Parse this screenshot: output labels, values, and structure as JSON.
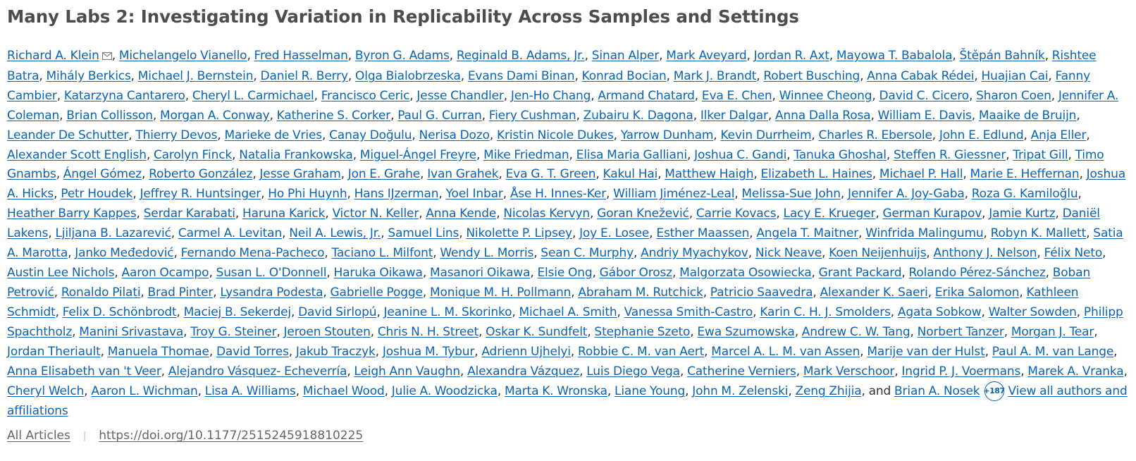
{
  "article": {
    "title": "Many Labs 2: Investigating Variation in Replicability Across Samples and Settings",
    "authors": [
      "Richard A. Klein",
      "Michelangelo Vianello",
      "Fred Hasselman",
      "Byron G. Adams",
      "Reginald B. Adams, Jr.",
      "Sinan Alper",
      "Mark Aveyard",
      "Jordan R. Axt",
      "Mayowa T. Babalola",
      "Štěpán Bahník",
      "Rishtee Batra",
      "Mihály Berkics",
      "Michael J. Bernstein",
      "Daniel R. Berry",
      "Olga Bialobrzeska",
      "Evans Dami Binan",
      "Konrad Bocian",
      "Mark J. Brandt",
      "Robert Busching",
      "Anna Cabak Rédei",
      "Huajian Cai",
      "Fanny Cambier",
      "Katarzyna Cantarero",
      "Cheryl L. Carmichael",
      "Francisco Ceric",
      "Jesse Chandler",
      "Jen-Ho Chang",
      "Armand Chatard",
      "Eva E. Chen",
      "Winnee Cheong",
      "David C. Cicero",
      "Sharon Coen",
      "Jennifer A. Coleman",
      "Brian Collisson",
      "Morgan A. Conway",
      "Katherine S. Corker",
      "Paul G. Curran",
      "Fiery Cushman",
      "Zubairu K. Dagona",
      "Ilker Dalgar",
      "Anna Dalla Rosa",
      "William E. Davis",
      "Maaike de Bruijn",
      "Leander De Schutter",
      "Thierry Devos",
      "Marieke de Vries",
      "Canay Doğulu",
      "Nerisa Dozo",
      "Kristin Nicole Dukes",
      "Yarrow Dunham",
      "Kevin Durrheim",
      "Charles R. Ebersole",
      "John E. Edlund",
      "Anja Eller",
      "Alexander Scott English",
      "Carolyn Finck",
      "Natalia Frankowska",
      "Miguel-Ángel Freyre",
      "Mike Friedman",
      "Elisa Maria Galliani",
      "Joshua C. Gandi",
      "Tanuka Ghoshal",
      "Steffen R. Giessner",
      "Tripat Gill",
      "Timo Gnambs",
      "Ángel Gómez",
      "Roberto González",
      "Jesse Graham",
      "Jon E. Grahe",
      "Ivan Grahek",
      "Eva G. T. Green",
      "Kakul Hai",
      "Matthew Haigh",
      "Elizabeth L. Haines",
      "Michael P. Hall",
      "Marie E. Heffernan",
      "Joshua A. Hicks",
      "Petr Houdek",
      "Jeffrey R. Huntsinger",
      "Ho Phi Huynh",
      "Hans IJzerman",
      "Yoel Inbar",
      "Åse H. Innes-Ker",
      "William Jiménez-Leal",
      "Melissa-Sue John",
      "Jennifer A. Joy-Gaba",
      "Roza G. Kamiloğlu",
      "Heather Barry Kappes",
      "Serdar Karabati",
      "Haruna Karick",
      "Victor N. Keller",
      "Anna Kende",
      "Nicolas Kervyn",
      "Goran Knežević",
      "Carrie Kovacs",
      "Lacy E. Krueger",
      "German Kurapov",
      "Jamie Kurtz",
      "Daniël Lakens",
      "Ljiljana B. Lazarević",
      "Carmel A. Levitan",
      "Neil A. Lewis, Jr.",
      "Samuel Lins",
      "Nikolette P. Lipsey",
      "Joy E. Losee",
      "Esther Maassen",
      "Angela T. Maitner",
      "Winfrida Malingumu",
      "Robyn K. Mallett",
      "Satia A. Marotta",
      "Janko Međedović",
      "Fernando Mena-Pacheco",
      "Taciano L. Milfont",
      "Wendy L. Morris",
      "Sean C. Murphy",
      "Andriy Myachykov",
      "Nick Neave",
      "Koen Neijenhuijs",
      "Anthony J. Nelson",
      "Félix Neto",
      "Austin Lee Nichols",
      "Aaron Ocampo",
      "Susan L. O'Donnell",
      "Haruka Oikawa",
      "Masanori Oikawa",
      "Elsie Ong",
      "Gábor Orosz",
      "Malgorzata Osowiecka",
      "Grant Packard",
      "Rolando Pérez-Sánchez",
      "Boban Petrović",
      "Ronaldo Pilati",
      "Brad Pinter",
      "Lysandra Podesta",
      "Gabrielle Pogge",
      "Monique M. H. Pollmann",
      "Abraham M. Rutchick",
      "Patricio Saavedra",
      "Alexander K. Saeri",
      "Erika Salomon",
      "Kathleen Schmidt",
      "Felix D. Schönbrodt",
      "Maciej B. Sekerdej",
      "David Sirlopú",
      "Jeanine L. M. Skorinko",
      "Michael A. Smith",
      "Vanessa Smith-Castro",
      "Karin C. H. J. Smolders",
      "Agata Sobkow",
      "Walter Sowden",
      "Philipp Spachtholz",
      "Manini Srivastava",
      "Troy G. Steiner",
      "Jeroen Stouten",
      "Chris N. H. Street",
      "Oskar K. Sundfelt",
      "Stephanie Szeto",
      "Ewa Szumowska",
      "Andrew C. W. Tang",
      "Norbert Tanzer",
      "Morgan J. Tear",
      "Jordan Theriault",
      "Manuela Thomae",
      "David Torres",
      "Jakub Traczyk",
      "Joshua M. Tybur",
      "Adrienn Ujhelyi",
      "Robbie C. M. van Aert",
      "Marcel A. L. M. van Assen",
      "Marije van der Hulst",
      "Paul A. M. van Lange",
      "Anna Elisabeth van 't Veer",
      "Alejandro Vásquez- Echeverría",
      "Leigh Ann Vaughn",
      "Alexandra Vázquez",
      "Luis Diego Vega",
      "Catherine Verniers",
      "Mark Verschoor",
      "Ingrid P. J. Voermans",
      "Marek A. Vranka",
      "Cheryl Welch",
      "Aaron L. Wichman",
      "Lisa A. Williams",
      "Michael Wood",
      "Julie A. Woodzicka",
      "Marta K. Wronska",
      "Liane Young",
      "John M. Zelenski",
      "Zeng Zhijia",
      "Brian A. Nosek"
    ],
    "last_conjunction": ", and ",
    "more_badge": "+187",
    "view_all_label": "View all authors and affiliations"
  },
  "footer": {
    "all_articles_label": "All Articles",
    "separator": "|",
    "doi_link": "https://doi.org/10.1177/2515245918810225"
  },
  "colors": {
    "link": "#0b63b4",
    "title": "#4d4d4d",
    "muted": "#666666"
  },
  "icons": {
    "corresponding_author": "envelope-icon"
  }
}
